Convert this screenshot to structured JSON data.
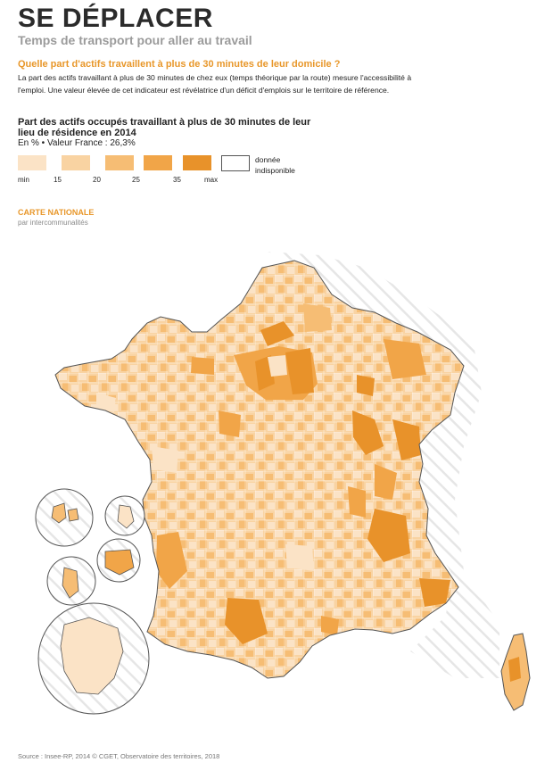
{
  "header": {
    "title": "SE DÉPLACER",
    "subtitle": "Temps de transport pour aller au travail"
  },
  "intro": {
    "question": "Quelle part d'actifs travaillent à plus de 30 minutes de leur domicile ?",
    "text": "La part des actifs travaillant à plus de 30 minutes de chez eux (temps théorique par la route) mesure l'accessibilité à l'emploi. Une valeur élevée de cet indicateur est révélatrice d'un déficit d'emplois sur le territoire de référence."
  },
  "indicator": {
    "title": "Part des actifs occupés travaillant à plus de 30 minutes de leur lieu de résidence en 2014",
    "unit_line": "En % • Valeur France : 26,3%"
  },
  "legend": {
    "classes": [
      {
        "color": "#fbe3c6"
      },
      {
        "color": "#f9d3a2"
      },
      {
        "color": "#f6bd74"
      },
      {
        "color": "#f1a548"
      },
      {
        "color": "#e8922a"
      }
    ],
    "breaks": [
      "min",
      "15",
      "20",
      "25",
      "35",
      "max"
    ],
    "nodata_label": "donnée indisponible"
  },
  "map": {
    "title": "CARTE NATIONALE",
    "subtitle": "par intercommunalités"
  },
  "source": "Source : Insee-RP, 2014 © CGET, Observatoire des territoires, 2018"
}
